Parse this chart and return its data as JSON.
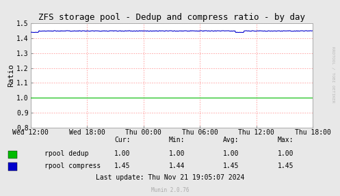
{
  "title": "ZFS storage pool - Dedup and compress ratio - by day",
  "ylabel": "Ratio",
  "bg_color": "#e8e8e8",
  "plot_bg_color": "#ffffff",
  "grid_color": "#ff9999",
  "x_tick_labels": [
    "Wed 12:00",
    "Wed 18:00",
    "Thu 00:00",
    "Thu 06:00",
    "Thu 12:00",
    "Thu 18:00"
  ],
  "ylim": [
    0.8,
    1.5
  ],
  "yticks": [
    0.8,
    0.9,
    1.0,
    1.1,
    1.2,
    1.3,
    1.4,
    1.5
  ],
  "dedup_value": 1.0,
  "compress_main": 1.45,
  "compress_dip_value": 1.44,
  "legend_labels": [
    "rpool dedup",
    "rpool compress"
  ],
  "legend_colors": [
    "#00bb00",
    "#0000cc"
  ],
  "stats_header": [
    "Cur:",
    "Min:",
    "Avg:",
    "Max:"
  ],
  "stats_dedup": [
    "1.00",
    "1.00",
    "1.00",
    "1.00"
  ],
  "stats_compress": [
    "1.45",
    "1.44",
    "1.45",
    "1.45"
  ],
  "last_update": "Last update: Thu Nov 21 19:05:07 2024",
  "munin_version": "Munin 2.0.76",
  "watermark": "RRDTOOL / TOBI OETIKER",
  "title_fontsize": 9,
  "axis_fontsize": 7,
  "stats_fontsize": 7
}
